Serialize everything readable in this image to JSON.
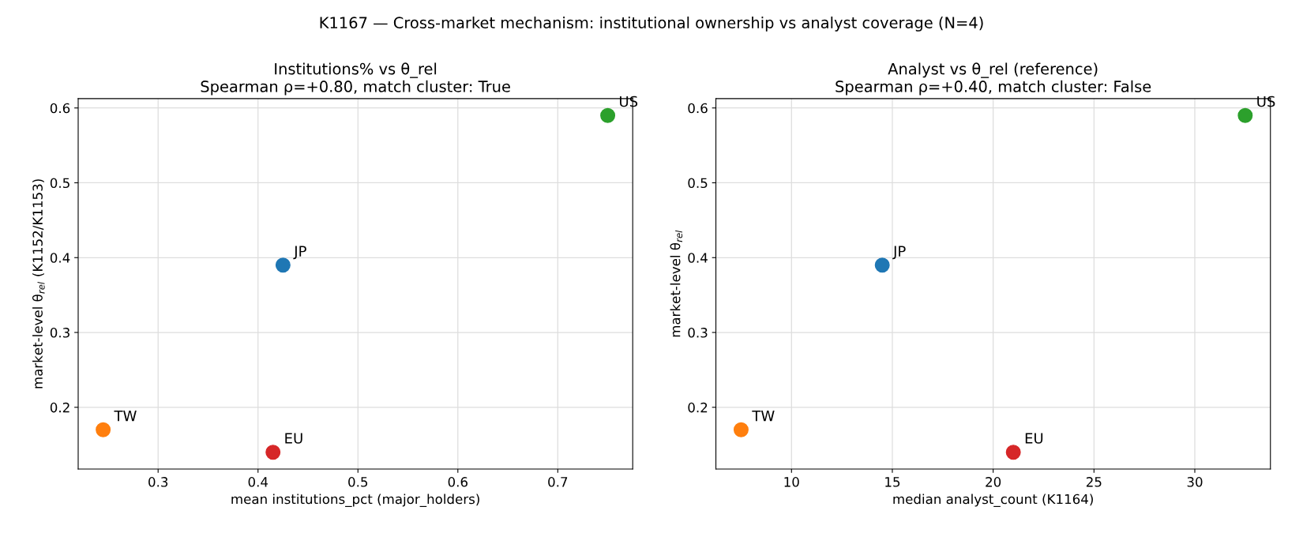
{
  "chart_data": [
    {
      "type": "scatter",
      "title": "Institutions% vs θ_rel\nSpearman ρ=+0.80, match cluster: True",
      "xlabel": "mean institutions_pct (major_holders)",
      "ylabel": "market-level θ$_{rel}$ (K1152/K1153)",
      "annotations": [
        "K1167 — Cross-market mechanism: institutional ownership vs analyst coverage (N=4)"
      ],
      "series": [
        {
          "name": "JP",
          "color": "#1f77b4",
          "x": [
            0.425
          ],
          "values": [
            0.39
          ]
        },
        {
          "name": "TW",
          "color": "#ff7f0e",
          "x": [
            0.245
          ],
          "values": [
            0.17
          ]
        },
        {
          "name": "US",
          "color": "#2ca02c",
          "x": [
            0.75
          ],
          "values": [
            0.59
          ]
        },
        {
          "name": "EU",
          "color": "#d62728",
          "x": [
            0.415
          ],
          "values": [
            0.14
          ]
        }
      ],
      "xlim": [
        0.22,
        0.775
      ],
      "xticks": [
        0.3,
        0.4,
        0.5,
        0.6,
        0.7
      ],
      "ylim": [
        0.1175,
        0.6125
      ],
      "yticks": [
        0.2,
        0.3,
        0.4,
        0.5,
        0.6
      ],
      "grid": true,
      "marker": "circle"
    },
    {
      "type": "scatter",
      "title": "Analyst vs θ_rel (reference)\nSpearman ρ=+0.40, match cluster: False",
      "xlabel": "median analyst_count (K1164)",
      "ylabel": "market-level θ$_{rel}$",
      "series": [
        {
          "name": "JP",
          "color": "#1f77b4",
          "x": [
            14.5
          ],
          "values": [
            0.39
          ]
        },
        {
          "name": "TW",
          "color": "#ff7f0e",
          "x": [
            7.5
          ],
          "values": [
            0.17
          ]
        },
        {
          "name": "US",
          "color": "#2ca02c",
          "x": [
            32.5
          ],
          "values": [
            0.59
          ]
        },
        {
          "name": "EU",
          "color": "#d62728",
          "x": [
            21
          ],
          "values": [
            0.14
          ]
        }
      ],
      "xlim": [
        6.25,
        33.75
      ],
      "xticks": [
        10,
        15,
        20,
        25,
        30
      ],
      "ylim": [
        0.1175,
        0.6125
      ],
      "yticks": [
        0.2,
        0.3,
        0.4,
        0.5,
        0.6
      ],
      "grid": true,
      "marker": "circle"
    }
  ]
}
